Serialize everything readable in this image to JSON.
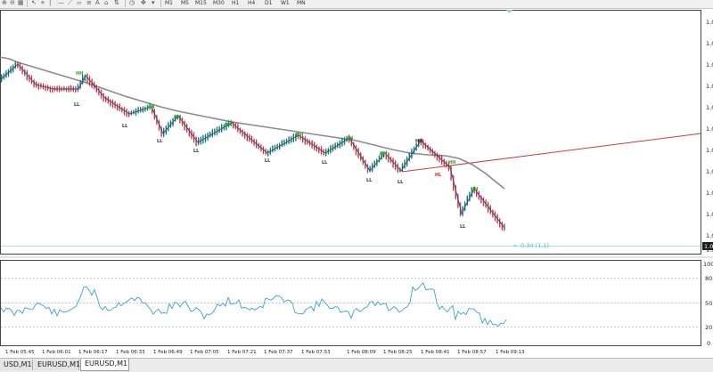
{
  "toolbar": {
    "timeframes": [
      "M1",
      "M5",
      "M15",
      "M30",
      "H1",
      "H4",
      "D1",
      "W1",
      "MN"
    ]
  },
  "colors": {
    "bull_candle": "#0d7a60",
    "bear_candle": "#c23a34",
    "moving_average": "#8b8b8b",
    "zigzag": "#3c3c96",
    "trend_line": "#d43a3a",
    "swing_high_label": "#22aa22",
    "swing_low_label": "#333333",
    "hl_label": "#dd2222",
    "rsi_line": "#3aa0d8",
    "bid_line": "#8fd4e6",
    "countdown_text": "#4bc3d8"
  },
  "main_chart": {
    "price_axis_labels": [
      "1.0",
      "1.0",
      "1.0",
      "1.0",
      "1.0",
      "1.0",
      "1.0",
      "1.0",
      "1.0",
      "1.0",
      "1.0",
      "1.0"
    ],
    "current_price_tag": "1.0",
    "countdown": "0:34 (1.1)",
    "annotations": {
      "hh": [
        "HH",
        "HH",
        "HH",
        "HH",
        "HH",
        "HH",
        "HH"
      ],
      "ll": [
        "LL",
        "LL",
        "LL",
        "LL",
        "LL",
        "LL",
        "LL",
        "LL",
        "LL",
        "LL"
      ],
      "hl": "HL",
      "peak": "HH"
    }
  },
  "indicator": {
    "scale_labels": [
      "100",
      "80",
      "50",
      "20",
      "0"
    ]
  },
  "time_axis": {
    "labels": [
      "1 Feb 05:45",
      "1 Feb 06:01",
      "1 Feb 06:17",
      "1 Feb 06:33",
      "1 Feb 06:49",
      "1 Feb 07:05",
      "1 Feb 07:21",
      "1 Feb 07:37",
      "1 Feb 07:53",
      "1 Feb 08:09",
      "1 Feb 08:25",
      "1 Feb 08:41",
      "1 Feb 08:57",
      "1 Feb 09:13"
    ]
  },
  "tabs": [
    "USD,M1",
    "EURUSD,M1",
    "EURUSD,M1"
  ],
  "active_tab_index": 2,
  "chart_data": {
    "type": "line",
    "symbol_timeframe": "EURUSD,M1",
    "x": [
      "1 Feb 05:45",
      "1 Feb 06:01",
      "1 Feb 06:17",
      "1 Feb 06:33",
      "1 Feb 06:49",
      "1 Feb 07:05",
      "1 Feb 07:21",
      "1 Feb 07:37",
      "1 Feb 07:53",
      "1 Feb 08:09",
      "1 Feb 08:25",
      "1 Feb 08:41",
      "1 Feb 08:57",
      "1 Feb 09:13"
    ],
    "series": [],
    "indicator_levels": [
      80,
      50,
      20
    ],
    "indicator_range": [
      0,
      100
    ]
  }
}
